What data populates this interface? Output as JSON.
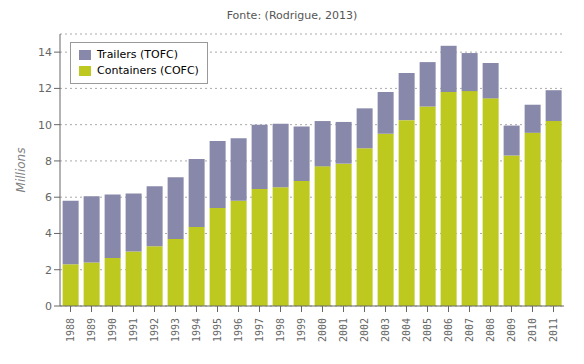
{
  "chart_data": {
    "type": "bar",
    "title": "Fonte: (Rodrigue, 2013)",
    "categories": [
      "1988",
      "1989",
      "1990",
      "1991",
      "1992",
      "1993",
      "1994",
      "1995",
      "1996",
      "1997",
      "1998",
      "1999",
      "2000",
      "2001",
      "2002",
      "2003",
      "2004",
      "2005",
      "2006",
      "2007",
      "2008",
      "2009",
      "2010",
      "2011"
    ],
    "series": [
      {
        "name": "Containers (COFC)",
        "color": "#bec920",
        "values": [
          2.3,
          2.4,
          2.65,
          3.0,
          3.3,
          3.7,
          4.35,
          5.4,
          5.8,
          6.45,
          6.55,
          6.9,
          7.7,
          7.85,
          8.7,
          9.5,
          10.25,
          11.0,
          11.8,
          11.85,
          11.45,
          8.3,
          9.55,
          10.2
        ]
      },
      {
        "name": "Trailers (TOFC)",
        "color": "#8888aa",
        "values": [
          3.5,
          3.65,
          3.5,
          3.2,
          3.3,
          3.4,
          3.75,
          3.7,
          3.45,
          3.55,
          3.5,
          3.0,
          2.5,
          2.3,
          2.2,
          2.3,
          2.6,
          2.45,
          2.55,
          2.1,
          1.95,
          1.65,
          1.55,
          1.7
        ]
      }
    ],
    "ylabel": "Millions",
    "ylim": [
      0,
      15
    ],
    "yticks": [
      0,
      2,
      4,
      6,
      8,
      10,
      12,
      14
    ],
    "stacked": true,
    "grid": true,
    "legend": "upper left"
  }
}
